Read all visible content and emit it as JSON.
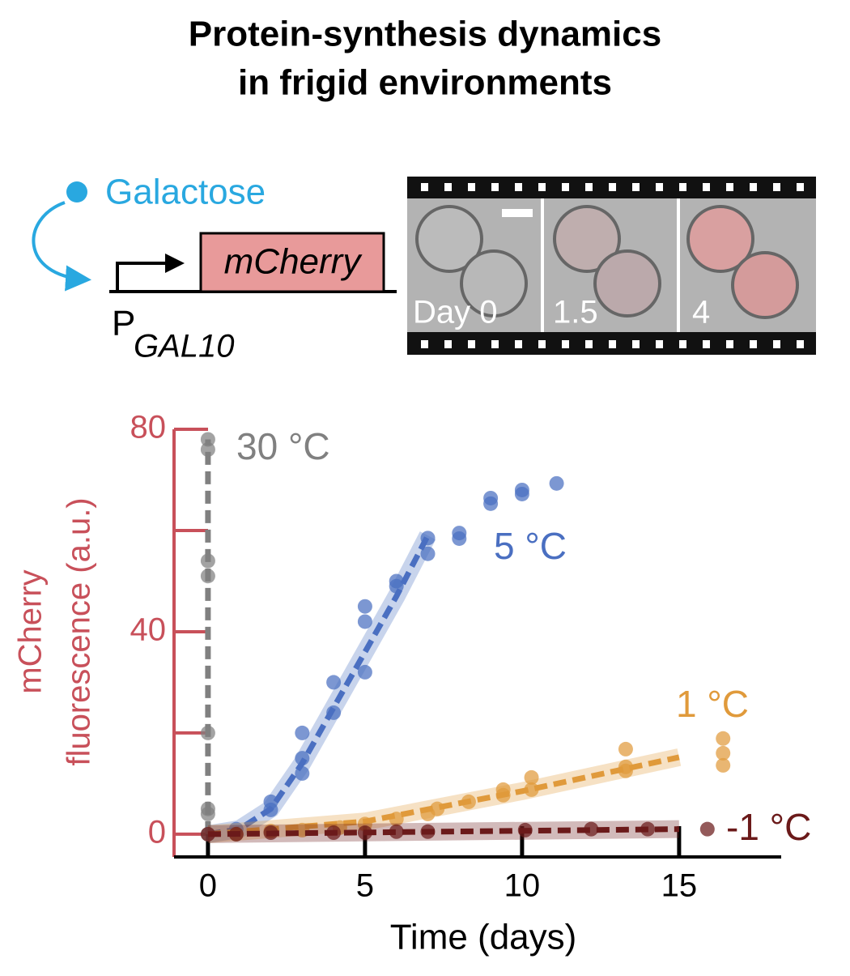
{
  "chart_data": {
    "type": "scatter",
    "title": [
      "Protein-synthesis dynamics",
      "in frigid environments"
    ],
    "xlabel": "Time (days)",
    "ylabel": [
      "mCherry",
      "fluorescence (a.u.)"
    ],
    "xlim": [
      -1.08,
      18.25
    ],
    "ylim": [
      -4.5,
      80
    ],
    "xticks": [
      0,
      5,
      10,
      15
    ],
    "yticks": [
      0,
      40,
      80
    ],
    "yminorticks": [
      20,
      60
    ],
    "axis_color": "#c8505a",
    "series": [
      {
        "name": "30 °C",
        "color": "#808080",
        "x": [
          0,
          0,
          0,
          0,
          0,
          0,
          0,
          0
        ],
        "values": [
          78,
          76,
          54,
          51,
          20,
          5,
          4,
          0
        ],
        "fit": {
          "x": [
            0,
            0
          ],
          "values": [
            0,
            78
          ]
        }
      },
      {
        "name": "5 °C",
        "color": "#4a6fc1",
        "x": [
          0.9,
          2,
          2,
          3,
          3,
          3,
          4,
          4,
          5,
          5,
          5,
          6,
          6,
          7,
          7,
          8,
          8,
          9,
          9,
          10,
          10,
          11.1
        ],
        "values": [
          1,
          6.4,
          4.8,
          20,
          15,
          12,
          30,
          24,
          45,
          42,
          32,
          50,
          49,
          58.5,
          55.4,
          59.5,
          58.4,
          66.4,
          65.3,
          68,
          67.2,
          69.3
        ],
        "fit": {
          "x": [
            0,
            1,
            2,
            3,
            4,
            5,
            6,
            7
          ],
          "values": [
            0,
            1,
            5,
            14,
            25,
            36,
            47,
            59
          ]
        }
      },
      {
        "name": "1 °C",
        "color": "#e09a3b",
        "x": [
          0.9,
          2,
          3,
          4.2,
          5,
          6,
          7,
          7.3,
          8.3,
          9.4,
          9.4,
          10.3,
          10.3,
          13.3,
          13.3,
          13.3,
          16.4,
          16.4,
          16.4
        ],
        "values": [
          0,
          0.6,
          0.8,
          1.3,
          2,
          3,
          4,
          5,
          6.4,
          8.8,
          7.7,
          11.2,
          8.8,
          16.8,
          13.3,
          12.5,
          18.9,
          16,
          13.6
        ],
        "fit": {
          "x": [
            0,
            5,
            10,
            15
          ],
          "values": [
            0,
            2.5,
            8.5,
            15.2
          ]
        }
      },
      {
        "name": "-1 °C",
        "color": "#6b1a1a",
        "x": [
          0,
          0.9,
          2,
          4,
          5,
          6,
          7,
          10.1,
          12.2,
          14,
          15.9
        ],
        "values": [
          0,
          0,
          0.3,
          0.3,
          0.3,
          0.5,
          0.5,
          0.8,
          1,
          1,
          1
        ],
        "fit": {
          "x": [
            0,
            15
          ],
          "values": [
            0,
            1
          ]
        }
      }
    ]
  },
  "diagram": {
    "inducer": "Galactose",
    "gene": "mCherry",
    "promoter": "P",
    "promoter_sub": "GAL10",
    "frames": [
      "Day 0",
      "1.5",
      "4"
    ]
  }
}
